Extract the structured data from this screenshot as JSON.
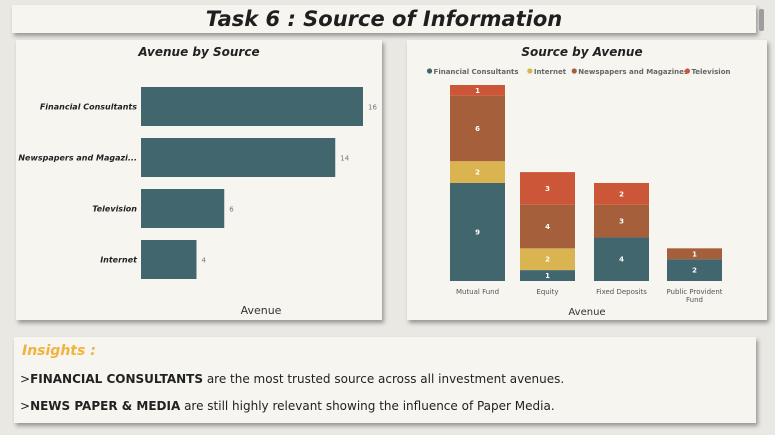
{
  "page": {
    "title": "Task 6 : Source of Information",
    "colors": {
      "background": "#e9e8e3",
      "panel": "#f6f5f0",
      "insights_title": "#f2b33d"
    }
  },
  "insights": {
    "title": "Insights :",
    "lines": [
      {
        "prefix": ">",
        "bold": "FINANCIAL CONSULTANTS",
        "text": " are the most trusted source across all investment avenues."
      },
      {
        "prefix": ">",
        "bold": "NEWS PAPER & MEDIA",
        "text": " are still highly relevant showing the influence of Paper Media."
      }
    ]
  },
  "chart_data": [
    {
      "type": "bar",
      "orientation": "horizontal",
      "title": "Avenue by Source",
      "categories": [
        "Financial Consultants",
        "Newspapers and Magazi...",
        "Television",
        "Internet"
      ],
      "values": [
        16,
        14,
        6,
        4
      ],
      "xlabel": "Avenue",
      "ylabel": "",
      "color": "#41666e"
    },
    {
      "type": "bar",
      "stacked": true,
      "title": "Source by Avenue",
      "xlabel": "Avenue",
      "categories": [
        "Mutual Fund",
        "Equity",
        "Fixed Deposits",
        "Public Provident Fund"
      ],
      "legend_position": "top",
      "series": [
        {
          "name": "Financial Consultants",
          "color": "#41666e",
          "values": [
            9,
            1,
            4,
            2
          ]
        },
        {
          "name": "Internet",
          "color": "#d9b450",
          "values": [
            2,
            2,
            0,
            0
          ]
        },
        {
          "name": "Newspapers and Magazines",
          "color": "#a65f3b",
          "values": [
            6,
            4,
            3,
            1
          ]
        },
        {
          "name": "Television",
          "color": "#cc5638",
          "values": [
            1,
            3,
            2,
            0
          ]
        }
      ]
    }
  ]
}
